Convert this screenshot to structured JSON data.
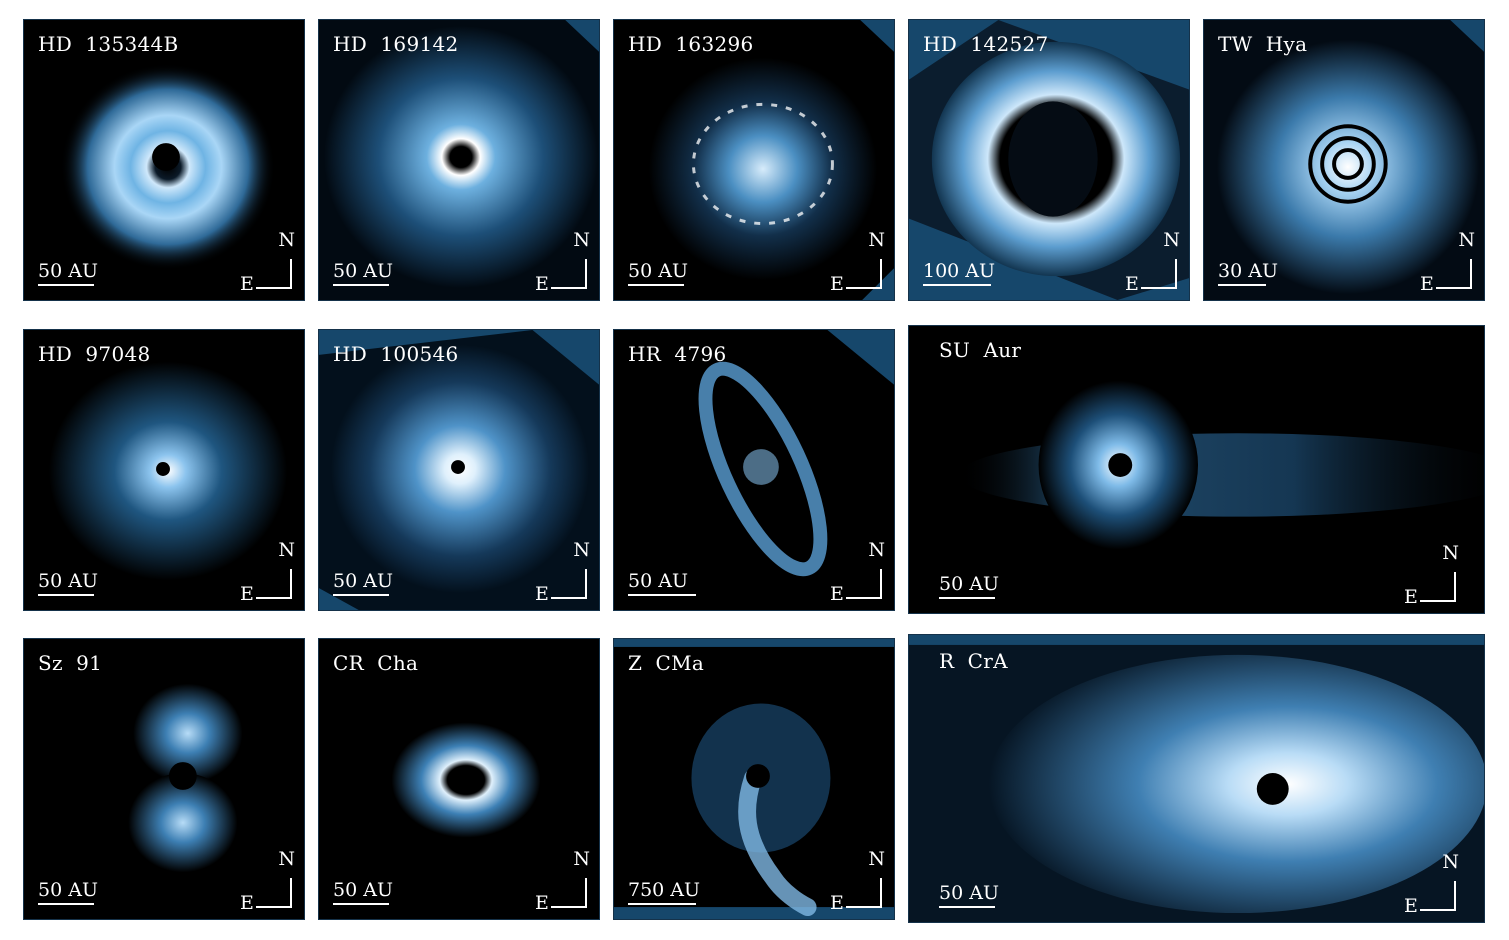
{
  "colors": {
    "background": "#ffffff",
    "panel": "#000000",
    "glow": "#6fb8ec",
    "bright": "#ffffff",
    "mask": "#16476b"
  },
  "compass": {
    "north": "N",
    "east": "E"
  },
  "panels": [
    {
      "id": "hd135344b",
      "label": "HD  135344B",
      "scale": "50 AU",
      "morphology": "spiral-ring"
    },
    {
      "id": "hd169142",
      "label": "HD  169142",
      "scale": "50 AU",
      "morphology": "ring"
    },
    {
      "id": "hd163296",
      "label": "HD  163296",
      "scale": "50 AU",
      "morphology": "speckle-ring"
    },
    {
      "id": "hd142527",
      "label": "HD  142527",
      "scale": "100 AU",
      "morphology": "wide-ring"
    },
    {
      "id": "twhya",
      "label": "TW  Hya",
      "scale": "30 AU",
      "morphology": "face-on-rings"
    },
    {
      "id": "hd97048",
      "label": "HD  97048",
      "scale": "50 AU",
      "morphology": "compact"
    },
    {
      "id": "hd100546",
      "label": "HD  100546",
      "scale": "50 AU",
      "morphology": "bright-core"
    },
    {
      "id": "hr4796",
      "label": "HR  4796",
      "scale": "50 AU",
      "morphology": "edge-on-ring"
    },
    {
      "id": "suaur",
      "label": "SU  Aur",
      "scale": "50 AU",
      "morphology": "tails"
    },
    {
      "id": "sz91",
      "label": "Sz  91",
      "scale": "50 AU",
      "morphology": "bipolar"
    },
    {
      "id": "crcha",
      "label": "CR  Cha",
      "scale": "50 AU",
      "morphology": "small-ring"
    },
    {
      "id": "zcma",
      "label": "Z  CMa",
      "scale": "750 AU",
      "morphology": "streamer"
    },
    {
      "id": "rcra",
      "label": "R  CrA",
      "scale": "50 AU",
      "morphology": "fan"
    }
  ]
}
